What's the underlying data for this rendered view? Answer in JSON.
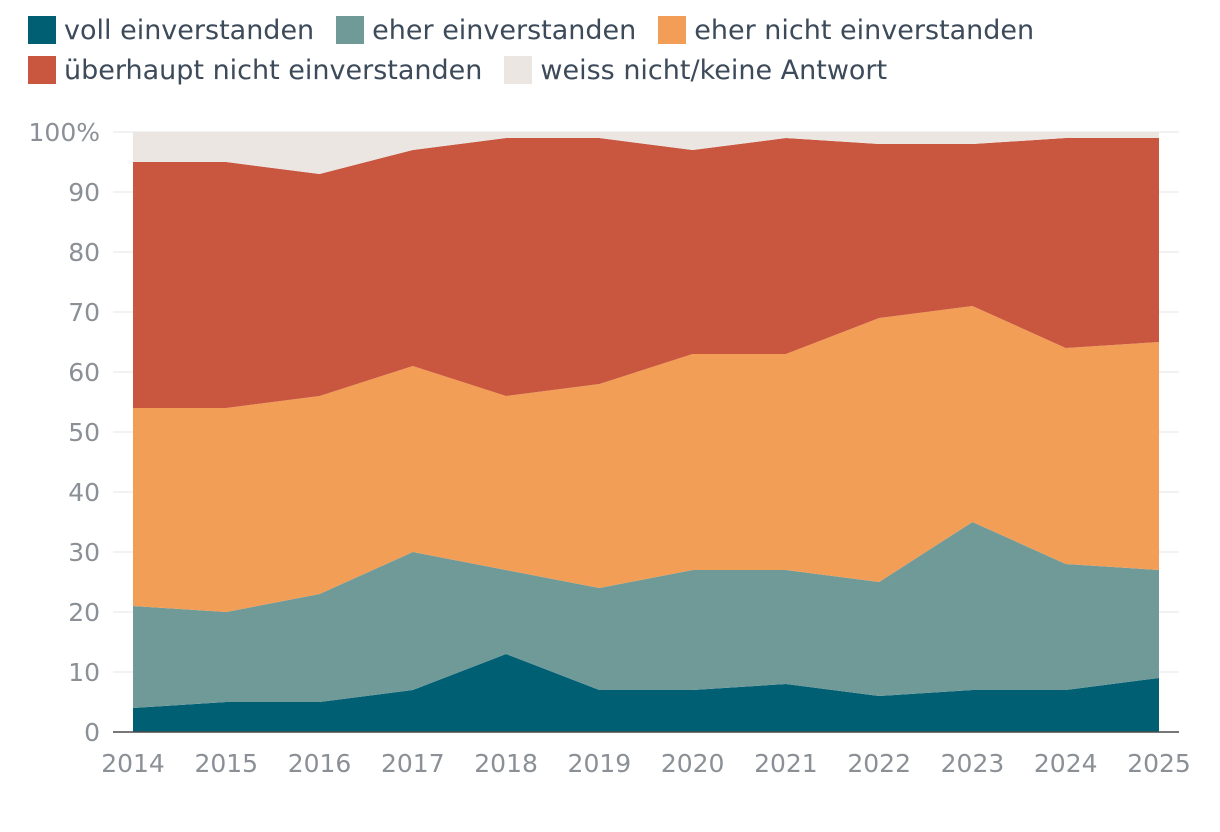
{
  "chart_data": {
    "type": "area",
    "stacked": true,
    "title": "",
    "xlabel": "",
    "ylabel": "",
    "x": [
      "2014",
      "2015",
      "2016",
      "2017",
      "2018",
      "2019",
      "2020",
      "2021",
      "2022",
      "2023",
      "2024",
      "2025"
    ],
    "ylim": [
      0,
      100
    ],
    "yticks": [
      "0",
      "10",
      "20",
      "30",
      "40",
      "50",
      "60",
      "70",
      "80",
      "90",
      "100%"
    ],
    "grid": true,
    "legend_position": "top",
    "series": [
      {
        "name": "voll einverstanden",
        "color": "#005f73",
        "values": [
          4,
          5,
          5,
          7,
          13,
          7,
          7,
          8,
          6,
          7,
          7,
          9
        ]
      },
      {
        "name": "eher einverstanden",
        "color": "#709a98",
        "values": [
          17,
          15,
          18,
          23,
          14,
          17,
          20,
          19,
          19,
          28,
          21,
          18
        ]
      },
      {
        "name": "eher nicht einverstanden",
        "color": "#f29e56",
        "values": [
          33,
          34,
          33,
          31,
          29,
          34,
          36,
          36,
          44,
          36,
          36,
          38
        ]
      },
      {
        "name": "überhaupt nicht einverstanden",
        "color": "#c9563f",
        "values": [
          41,
          41,
          37,
          36,
          43,
          41,
          34,
          36,
          29,
          27,
          35,
          34
        ]
      },
      {
        "name": "weiss nicht/keine Antwort",
        "color": "#ebe6e2",
        "values": [
          5,
          5,
          7,
          3,
          1,
          1,
          3,
          1,
          2,
          2,
          1,
          1
        ]
      }
    ]
  }
}
